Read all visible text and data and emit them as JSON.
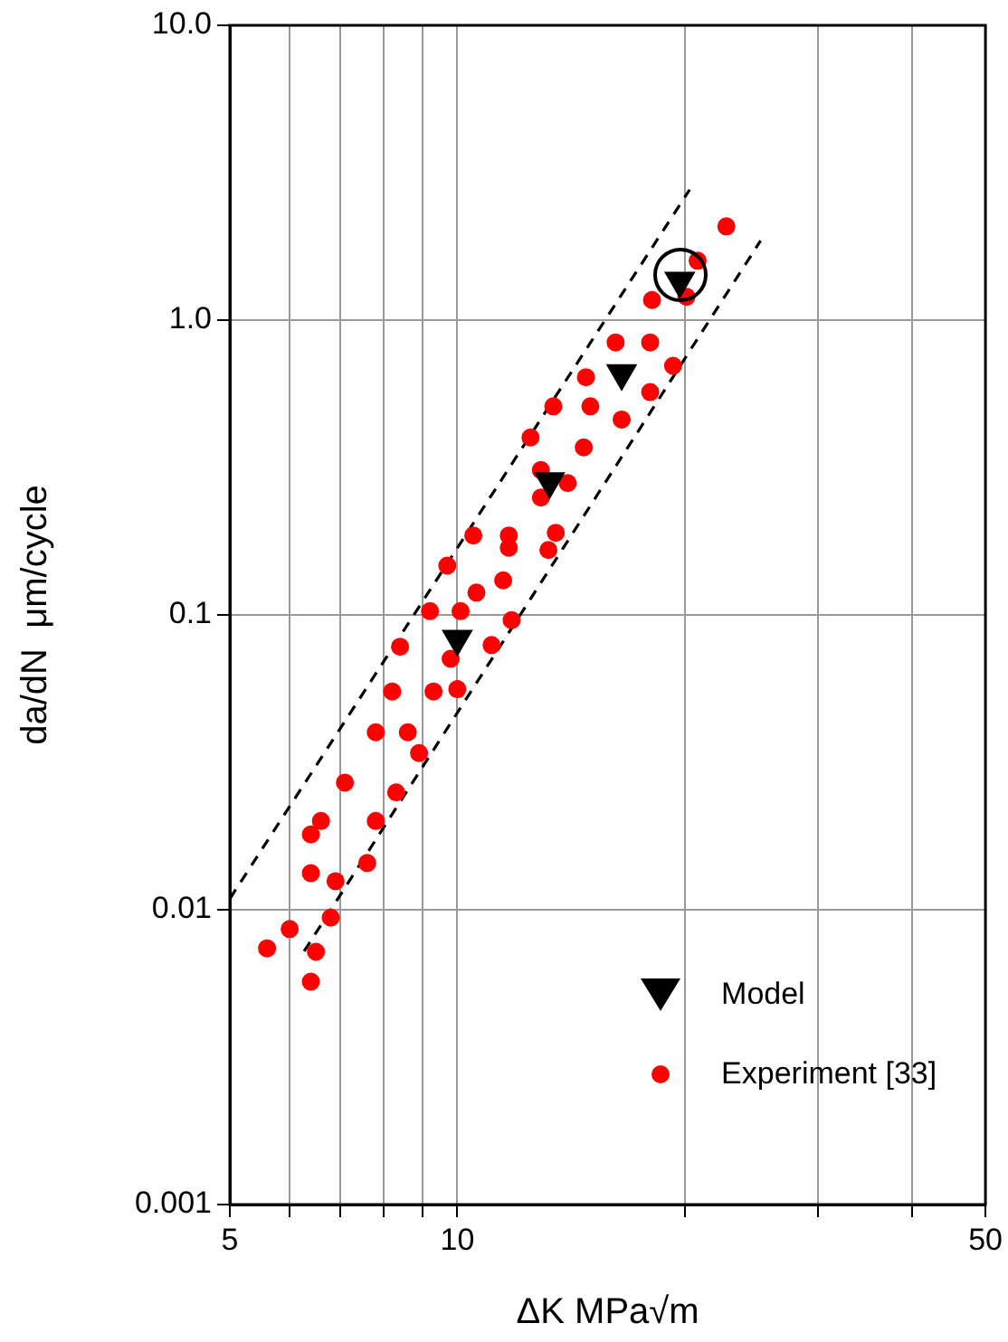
{
  "chart_data": {
    "type": "scatter",
    "xlabel": "ΔK MPa√m",
    "ylabel": "da/dN  μm/cycle",
    "log": "xy",
    "grid": true,
    "legend": "bottom right",
    "xlim": [
      5,
      50
    ],
    "ylim": [
      0.001,
      10
    ],
    "xticks": [
      5,
      {
        "value": 6,
        "label": null
      },
      {
        "value": 7,
        "label": null
      },
      {
        "value": 8,
        "label": null
      },
      {
        "value": 9,
        "label": null
      },
      10,
      {
        "value": 20,
        "label": null
      },
      {
        "value": 30,
        "label": null
      },
      {
        "value": 40,
        "label": null
      },
      50
    ],
    "yticks": [
      0.001,
      0.01,
      0.1,
      {
        "value": 1,
        "label": "1.0"
      },
      {
        "value": 10,
        "label": "10.0"
      }
    ],
    "series": [
      {
        "name": "Model",
        "marker": "triangle",
        "color": "#000000",
        "x": [
          10,
          13.25,
          16.5,
          19.7
        ],
        "values": [
          0.083,
          0.284,
          0.66,
          1.36
        ]
      },
      {
        "name": "Experiment [33]",
        "marker": "circle",
        "color": "#ff0000",
        "x": [
          22.7,
          20.8,
          18.1,
          20.1,
          16.2,
          18.0,
          19.3,
          14.8,
          18.0,
          13.4,
          15.0,
          16.5,
          12.5,
          14.7,
          12.9,
          14.0,
          12.9,
          10.5,
          11.7,
          11.7,
          13.5,
          13.2,
          9.7,
          11.5,
          10.6,
          9.2,
          10.1,
          11.8,
          11.1,
          8.4,
          9.8,
          8.2,
          9.3,
          10.0,
          7.8,
          8.6,
          8.9,
          7.1,
          8.3,
          6.6,
          7.8,
          6.4,
          7.6,
          6.4,
          6.9,
          6.8,
          6.0,
          5.6,
          6.5,
          6.4
        ],
        "values": [
          2.08,
          1.59,
          1.17,
          1.2,
          0.84,
          0.84,
          0.7,
          0.64,
          0.57,
          0.51,
          0.51,
          0.46,
          0.4,
          0.37,
          0.31,
          0.28,
          0.25,
          0.186,
          0.186,
          0.169,
          0.19,
          0.166,
          0.147,
          0.131,
          0.119,
          0.103,
          0.103,
          0.096,
          0.079,
          0.078,
          0.071,
          0.055,
          0.055,
          0.056,
          0.04,
          0.04,
          0.034,
          0.027,
          0.025,
          0.02,
          0.02,
          0.018,
          0.0144,
          0.0133,
          0.0125,
          0.0094,
          0.0086,
          0.0074,
          0.0072,
          0.0057
        ]
      },
      {
        "type": "line",
        "line_style": "dashed",
        "color": "#000000",
        "x": [
          5,
          20.3
        ],
        "values": [
          0.0109,
          2.77
        ]
      },
      {
        "type": "line",
        "line_style": "dashed",
        "color": "#000000",
        "x": [
          6.27,
          25.2
        ],
        "values": [
          0.00723,
          1.86
        ]
      }
    ]
  }
}
